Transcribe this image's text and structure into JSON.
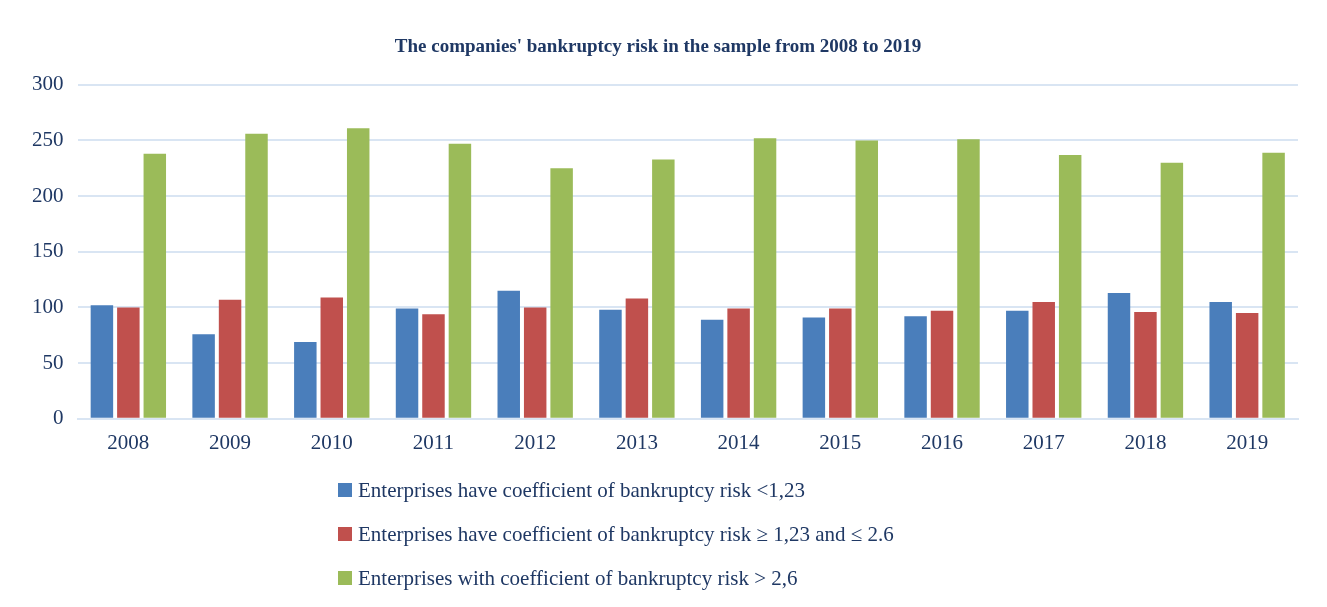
{
  "chart_data": {
    "type": "bar",
    "title": "The companies' bankruptcy risk in the sample from 2008 to 2019",
    "categories": [
      "2008",
      "2009",
      "2010",
      "2011",
      "2012",
      "2013",
      "2014",
      "2015",
      "2016",
      "2017",
      "2018",
      "2019"
    ],
    "series": [
      {
        "name": "Enterprises have coefficient of bankruptcy risk <1,23",
        "color": "#4a7ebb",
        "values": [
          102,
          76,
          69,
          99,
          115,
          98,
          89,
          91,
          92,
          97,
          113,
          105
        ]
      },
      {
        "name": "Enterprises have coefficient of bankruptcy risk ≥ 1,23 and ≤ 2.6",
        "color": "#c0504d",
        "values": [
          100,
          107,
          109,
          94,
          100,
          108,
          99,
          99,
          97,
          105,
          96,
          95
        ]
      },
      {
        "name": "Enterprises with coefficient of bankruptcy risk > 2,6",
        "color": "#9bbb59",
        "values": [
          238,
          256,
          261,
          247,
          225,
          233,
          252,
          250,
          251,
          237,
          230,
          239
        ]
      }
    ],
    "ylim": [
      0,
      300
    ],
    "yticks": [
      0,
      50,
      100,
      150,
      200,
      250,
      300
    ],
    "grid": "y",
    "legend": "bottom"
  }
}
